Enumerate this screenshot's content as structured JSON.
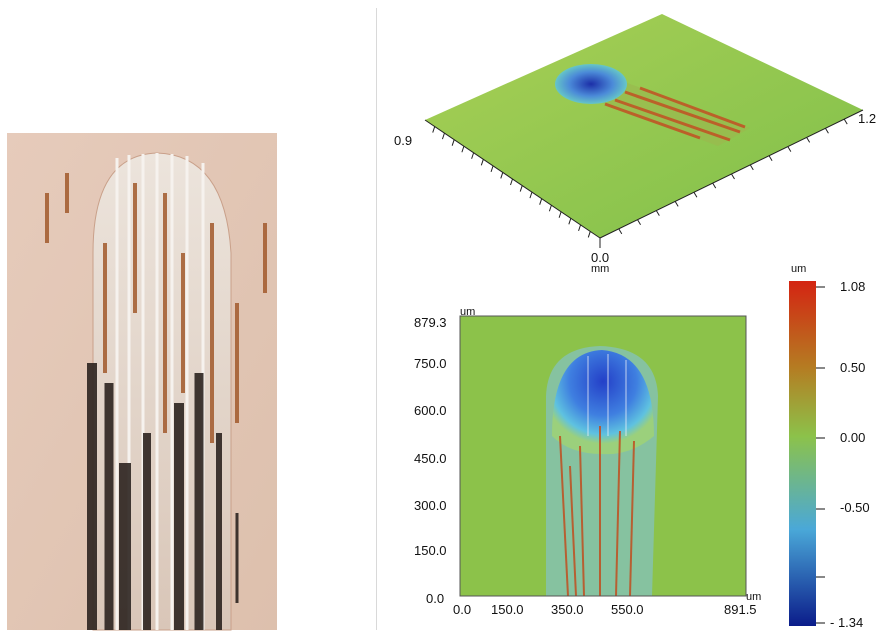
{
  "surface_3d": {
    "left_axis_value": "0.9",
    "right_axis_value": "1.2",
    "origin_value": "0.0",
    "origin_unit": "mm"
  },
  "height_map": {
    "x_unit": "um",
    "y_unit": "um",
    "x_ticks": [
      "0.0",
      "150.0",
      "350.0",
      "550.0",
      "891.5"
    ],
    "y_ticks": [
      "879.3",
      "750.0",
      "600.0",
      "450.0",
      "300.0",
      "150.0",
      "0.0"
    ]
  },
  "colorbar": {
    "unit": "um",
    "ticks": [
      "1.08",
      "0.50",
      "0.00",
      "-0.50",
      "- 1.34"
    ],
    "colors": [
      "#d42412",
      "#b57c22",
      "#8cc24a",
      "#4aa8d8",
      "#0b1c8a"
    ]
  }
}
